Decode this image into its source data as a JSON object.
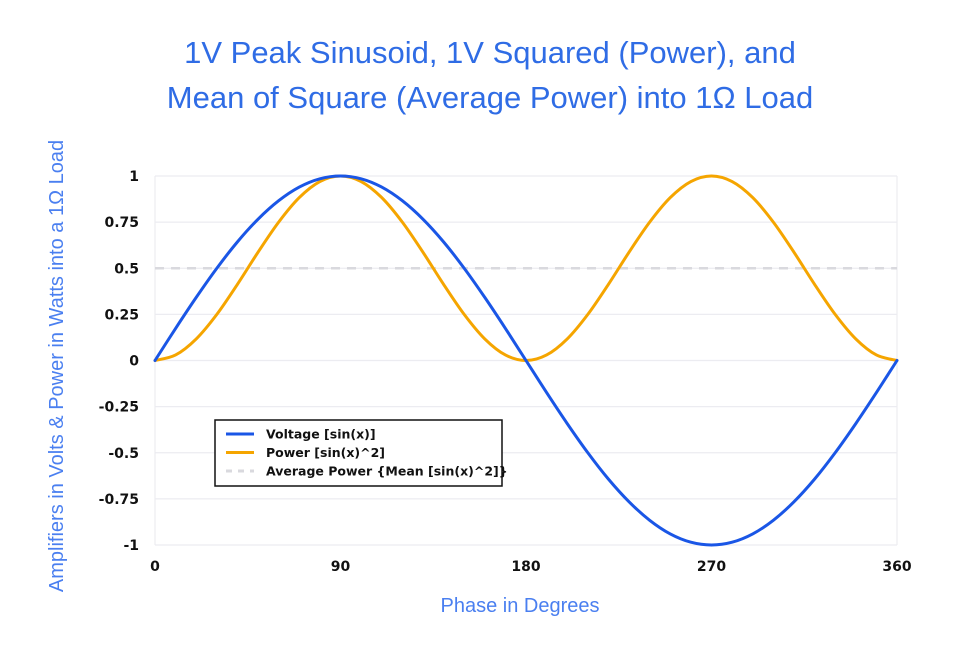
{
  "chart_data": {
    "type": "line",
    "title": [
      "1V Peak Sinusoid, 1V Squared (Power), and",
      "Mean of Square (Average Power) into 1Ω Load"
    ],
    "xlabel": "Phase in Degrees",
    "ylabel": "Amplifiers in Volts & Power in Watts into a 1Ω Load",
    "xlim": [
      0,
      360
    ],
    "ylim": [
      -1,
      1
    ],
    "xticks": [
      0,
      90,
      180,
      270,
      360
    ],
    "xtick_labels": [
      "0",
      "90",
      "180",
      "270",
      "360"
    ],
    "yticks": [
      1,
      0.75,
      0.5,
      0.25,
      0,
      -0.25,
      -0.5,
      -0.75,
      -1
    ],
    "ytick_labels": [
      "1",
      "0.75",
      "0.5",
      "0.25",
      "0",
      "-0.25",
      "-0.5",
      "-0.75",
      "-1"
    ],
    "grid": "horizontal",
    "legend_placement": "lower-left",
    "x": [
      0,
      10,
      20,
      30,
      40,
      50,
      60,
      70,
      80,
      90,
      100,
      110,
      120,
      130,
      140,
      150,
      160,
      170,
      180,
      190,
      200,
      210,
      220,
      230,
      240,
      250,
      260,
      270,
      280,
      290,
      300,
      310,
      320,
      330,
      340,
      350,
      360
    ],
    "series": [
      {
        "name": "Voltage [sin(x)]",
        "color": "#1a56e6",
        "style": "solid",
        "values": [
          0,
          0.174,
          0.342,
          0.5,
          0.643,
          0.766,
          0.866,
          0.94,
          0.985,
          1,
          0.985,
          0.94,
          0.866,
          0.766,
          0.643,
          0.5,
          0.342,
          0.174,
          0,
          -0.174,
          -0.342,
          -0.5,
          -0.643,
          -0.766,
          -0.866,
          -0.94,
          -0.985,
          -1,
          -0.985,
          -0.94,
          -0.866,
          -0.766,
          -0.643,
          -0.5,
          -0.342,
          -0.174,
          0
        ]
      },
      {
        "name": "Power [sin(x)^2]",
        "color": "#f5a500",
        "style": "solid",
        "values": [
          0,
          0.03,
          0.117,
          0.25,
          0.413,
          0.587,
          0.75,
          0.883,
          0.97,
          1,
          0.97,
          0.883,
          0.75,
          0.587,
          0.413,
          0.25,
          0.117,
          0.03,
          0,
          0.03,
          0.117,
          0.25,
          0.413,
          0.587,
          0.75,
          0.883,
          0.97,
          1,
          0.97,
          0.883,
          0.75,
          0.587,
          0.413,
          0.25,
          0.117,
          0.03,
          0
        ]
      },
      {
        "name": "Average Power {Mean [sin(x)^2]}",
        "color": "#d9d9de",
        "style": "dashed",
        "values": [
          0.5,
          0.5,
          0.5,
          0.5,
          0.5,
          0.5,
          0.5,
          0.5,
          0.5,
          0.5,
          0.5,
          0.5,
          0.5,
          0.5,
          0.5,
          0.5,
          0.5,
          0.5,
          0.5,
          0.5,
          0.5,
          0.5,
          0.5,
          0.5,
          0.5,
          0.5,
          0.5,
          0.5,
          0.5,
          0.5,
          0.5,
          0.5,
          0.5,
          0.5,
          0.5,
          0.5,
          0.5
        ]
      }
    ]
  }
}
